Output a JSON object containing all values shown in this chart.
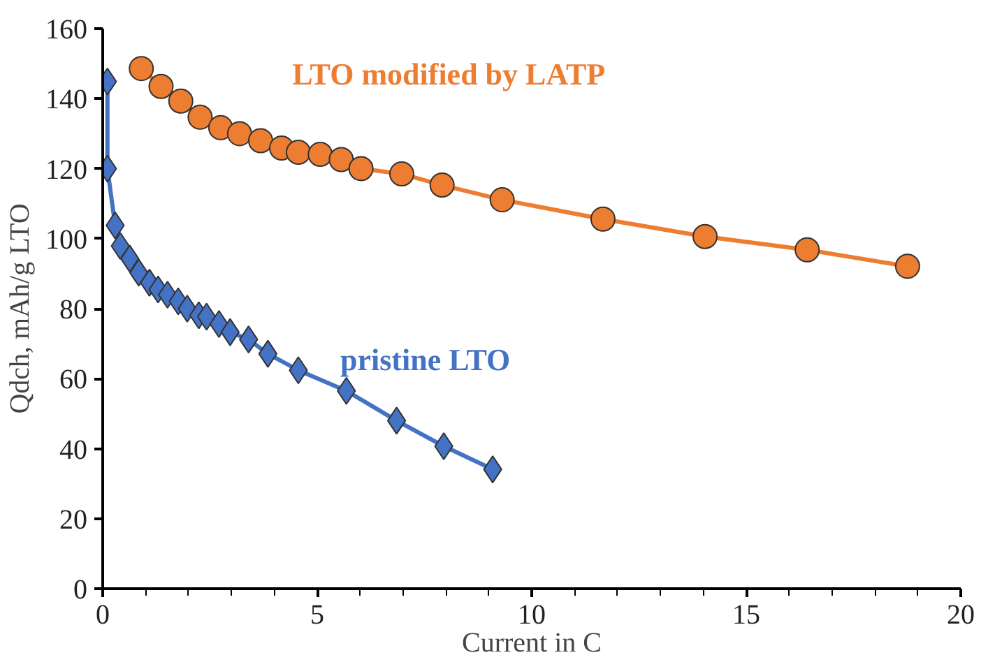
{
  "chart_data": {
    "type": "line",
    "xlabel": "Current in C",
    "ylabel": "Qdch, mAh/g LTO",
    "xlim": [
      0,
      20
    ],
    "xticks": [
      0,
      5,
      10,
      15,
      20
    ],
    "ylim": [
      0,
      160
    ],
    "yticks": [
      0,
      20,
      40,
      60,
      80,
      100,
      120,
      140,
      160
    ],
    "grid": false,
    "legend": false,
    "series": [
      {
        "name": "LTO modified  by LATP",
        "color": "#ed7d31",
        "marker": "circle",
        "x": [
          0.9,
          1.36,
          1.82,
          2.27,
          2.75,
          3.19,
          3.68,
          4.17,
          4.56,
          5.07,
          5.56,
          6.02,
          6.97,
          7.91,
          9.31,
          11.66,
          14.04,
          16.42,
          18.76
        ],
        "values": [
          148.6,
          143.5,
          139.3,
          134.7,
          131.7,
          130,
          128,
          125.9,
          124.7,
          124.1,
          122.6,
          120,
          118.5,
          115.3,
          111.1,
          105.6,
          100.6,
          96.8,
          92.1
        ]
      },
      {
        "name": "pristine  LTO",
        "color": "#4472c4",
        "marker": "diamond",
        "x": [
          0.11,
          0.11,
          0.29,
          0.41,
          0.63,
          0.84,
          1.09,
          1.29,
          1.51,
          1.76,
          1.97,
          2.24,
          2.42,
          2.71,
          2.97,
          3.4,
          3.85,
          4.56,
          5.68,
          6.85,
          7.95,
          9.09
        ],
        "values": [
          144.9,
          120,
          103.8,
          97.9,
          94.3,
          90.3,
          87.4,
          85.5,
          84,
          82.1,
          80,
          78.1,
          77.7,
          75.6,
          73.3,
          71.2,
          67.1,
          62.4,
          56.5,
          48,
          40.7,
          34.1
        ]
      }
    ]
  }
}
